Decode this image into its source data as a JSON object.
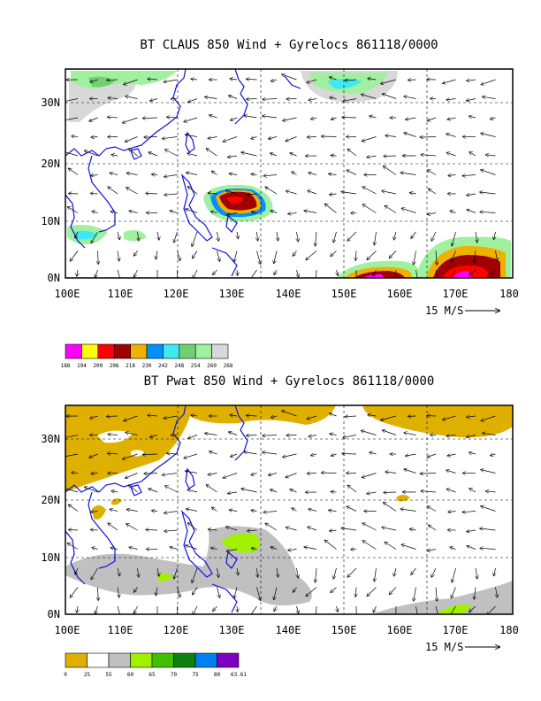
{
  "top_panel": {
    "title": "BT CLAUS 850 Wind + Gyrelocs 861118/0000",
    "y_labels": [
      "30N",
      "20N",
      "10N",
      "0N"
    ],
    "x_labels": [
      "100E",
      "110E",
      "120E",
      "130E",
      "140E",
      "150E",
      "160E",
      "170E",
      "180"
    ],
    "ref_vector": "15 M/S",
    "legend_colors": [
      "#ff00ff",
      "#ffff00",
      "#ff0000",
      "#a00000",
      "#f0b000",
      "#0090ff",
      "#40e8f0",
      "#70d070",
      "#a0f0a0",
      "#d8d8d8"
    ],
    "legend_labels": [
      "188",
      "194",
      "200",
      "206",
      "218",
      "230",
      "242",
      "248",
      "254",
      "260",
      "268"
    ]
  },
  "bottom_panel": {
    "title": "BT Pwat 850 Wind + Gyrelocs 861118/0000",
    "y_labels": [
      "30N",
      "20N",
      "10N",
      "0N"
    ],
    "x_labels": [
      "100E",
      "110E",
      "120E",
      "130E",
      "140E",
      "150E",
      "160E",
      "170E",
      "180"
    ],
    "ref_vector": "15 M/S",
    "legend_colors": [
      "#e0b000",
      "#ffffff",
      "#c0c0c0",
      "#a0f000",
      "#40c000",
      "#108010",
      "#0080f0",
      "#8000c0"
    ],
    "legend_labels": [
      "0",
      "25",
      "55",
      "60",
      "65",
      "70",
      "75",
      "80",
      "63.61"
    ]
  },
  "colors": {
    "coast": "#1010e0",
    "grid": "#000000"
  }
}
